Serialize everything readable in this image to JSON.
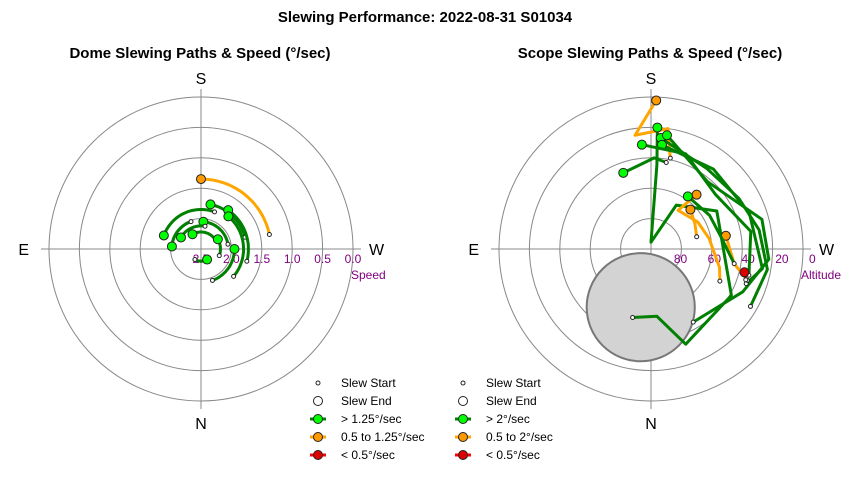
{
  "title": "Slewing Performance: 2022-08-31 S01034",
  "colors": {
    "fast": "#008000",
    "medium": "#ffa500",
    "slow": "#ff0000",
    "fast_marker": "#00ff00",
    "medium_marker": "#ff9900",
    "slow_marker": "#dd0000",
    "ring": "#888888",
    "label": "#800080",
    "zone": "#d3d3d3"
  },
  "chart_data": [
    {
      "type": "polar-path",
      "title": "Dome Slewing Paths & Speed (°/sec)",
      "compass": {
        "S": "S",
        "E": "E",
        "W": "W",
        "N": "N"
      },
      "radial_axis": {
        "name": "Speed",
        "min": 0.0,
        "max": 2.5,
        "ticks": [
          "2.5",
          "2.0",
          "1.5",
          "1.0",
          "0.5",
          "0.0"
        ]
      },
      "legend": [
        {
          "marker": "start",
          "label": "Slew Start"
        },
        {
          "marker": "end",
          "label": "Slew End"
        },
        {
          "marker": "fast",
          "label": "> 1.25°/sec"
        },
        {
          "marker": "medium",
          "label": "0.5 to 1.25°/sec"
        },
        {
          "marker": "slow",
          "label": "< 0.5°/sec"
        }
      ],
      "paths": [
        {
          "speed": "medium",
          "az_start": 0,
          "az_end": 78,
          "radius": 1.35
        },
        {
          "speed": "fast",
          "az_start": 12,
          "az_end": 75,
          "radius": 1.75
        },
        {
          "speed": "fast",
          "az_start": 35,
          "az_end": 105,
          "radius": 1.72
        },
        {
          "speed": "fast",
          "az_start": 40,
          "az_end": 130,
          "radius": 1.8
        },
        {
          "speed": "fast",
          "az_start": 5,
          "az_end": 80,
          "radius": 2.05
        },
        {
          "speed": "fast",
          "az_start": -70,
          "az_end": 20,
          "radius": 1.85
        },
        {
          "speed": "fast",
          "az_start": -85,
          "az_end": -20,
          "radius": 2.02
        },
        {
          "speed": "fast",
          "az_start": -30,
          "az_end": 60,
          "radius": 2.22
        },
        {
          "speed": "fast",
          "az_start": -60,
          "az_end": 10,
          "radius": 2.12
        },
        {
          "speed": "fast",
          "az_start": 90,
          "az_end": 160,
          "radius": 1.95
        },
        {
          "speed": "fast",
          "az_start": 60,
          "az_end": 110,
          "radius": 2.18
        },
        {
          "speed": "fast",
          "az_start": 150,
          "az_end": 210,
          "radius": 2.3
        }
      ]
    },
    {
      "type": "polar-path",
      "title": "Scope Slewing Paths & Speed (°/sec)",
      "compass": {
        "S": "S",
        "E": "E",
        "W": "W",
        "N": "N"
      },
      "radial_axis": {
        "name": "Altitude",
        "min": 90,
        "max": 0,
        "ticks": [
          "80",
          "60",
          "40",
          "20",
          "0"
        ]
      },
      "legend": [
        {
          "marker": "start",
          "label": "Slew Start"
        },
        {
          "marker": "end",
          "label": "Slew End"
        },
        {
          "marker": "fast",
          "label": "> 2°/sec"
        },
        {
          "marker": "medium",
          "label": "0.5 to 2°/sec"
        },
        {
          "marker": "slow",
          "label": "< 0.5°/sec"
        }
      ],
      "excluded_zone": {
        "az": 190,
        "alt": 55,
        "radius_deg": 32
      },
      "paths": [
        {
          "speed": "medium",
          "points": [
            [
              2,
              2
            ],
            [
              -8,
              22
            ],
            [
              8,
              18
            ],
            [
              12,
              35
            ]
          ]
        },
        {
          "speed": "fast",
          "points": [
            [
              3,
              18
            ],
            [
              4,
              40
            ],
            [
              0,
              86
            ],
            [
              30,
              60
            ],
            [
              60,
              45
            ],
            [
              120,
              35
            ],
            [
              160,
              30
            ],
            [
              175,
              50
            ],
            [
              195,
              48
            ]
          ]
        },
        {
          "speed": "fast",
          "points": [
            [
              5,
              24
            ],
            [
              35,
              32
            ],
            [
              60,
              30
            ],
            [
              80,
              25
            ],
            [
              100,
              20
            ],
            [
              120,
              22
            ]
          ]
        },
        {
          "speed": "fast",
          "points": [
            [
              8,
              22
            ],
            [
              40,
              38
            ],
            [
              75,
              22
            ],
            [
              95,
              20
            ],
            [
              115,
              30
            ],
            [
              150,
              40
            ]
          ]
        },
        {
          "speed": "fast",
          "points": [
            [
              6,
              28
            ],
            [
              38,
              30
            ],
            [
              70,
              28
            ],
            [
              100,
              23
            ],
            [
              110,
              30
            ]
          ]
        },
        {
          "speed": "fast",
          "points": [
            [
              -5,
              28
            ],
            [
              20,
              30
            ],
            [
              50,
              40
            ],
            [
              80,
              30
            ],
            [
              105,
              30
            ]
          ]
        },
        {
          "speed": "medium",
          "points": [
            [
              40,
              48
            ],
            [
              35,
              62
            ],
            [
              60,
              58
            ],
            [
              80,
              55
            ],
            [
              105,
              48
            ],
            [
              115,
              45
            ]
          ]
        },
        {
          "speed": "medium",
          "points": [
            [
              80,
              45
            ],
            [
              100,
              40
            ],
            [
              108,
              30
            ]
          ]
        },
        {
          "speed": "fast",
          "points": [
            [
              35,
              52
            ],
            [
              60,
              50
            ],
            [
              80,
              48
            ],
            [
              100,
              40
            ]
          ]
        },
        {
          "speed": "slow",
          "points": [
            [
              104,
              33
            ],
            [
              106,
              32
            ],
            [
              108,
              31
            ]
          ]
        },
        {
          "speed": "fast",
          "points": [
            [
              -20,
              42
            ],
            [
              2,
              36
            ],
            [
              10,
              38
            ]
          ]
        },
        {
          "speed": "medium",
          "points": [
            [
              45,
              57
            ],
            [
              60,
              60
            ],
            [
              75,
              62
            ]
          ]
        }
      ]
    }
  ]
}
